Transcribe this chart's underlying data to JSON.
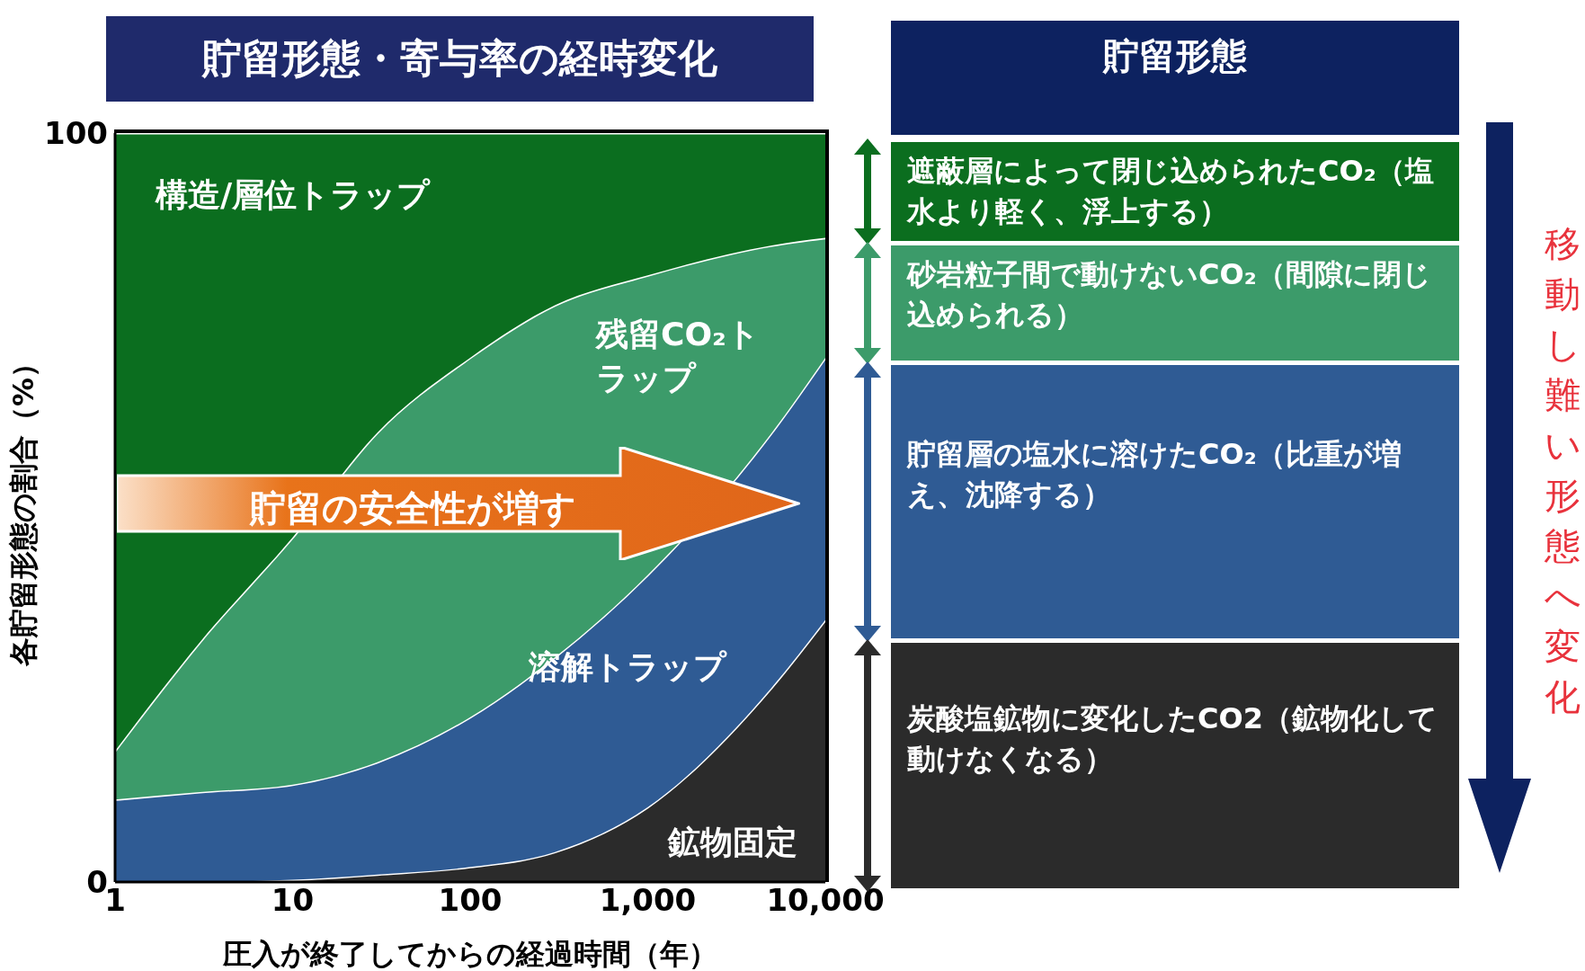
{
  "chart_data": {
    "type": "area",
    "stacked": true,
    "title": "貯留形態・寄与率の経時変化",
    "xlabel": "圧入が終了してからの経過時間（年）",
    "ylabel": "各貯留形態の割合（%）",
    "log": "x",
    "x": [
      1,
      3,
      10,
      30,
      100,
      300,
      1000,
      5000,
      10000
    ],
    "series": [
      {
        "name": "鉱物固定",
        "color": "#2b2b2b",
        "values": [
          0,
          0,
          0.3,
          1,
          2,
          4,
          10,
          26,
          35
        ]
      },
      {
        "name": "溶解トラップ",
        "color": "#2f5b94",
        "values": [
          11,
          12,
          12.7,
          15,
          20,
          26,
          31,
          34,
          35
        ]
      },
      {
        "name": "残留CO₂トラップ",
        "color": "#3c9b6a",
        "values": [
          6.5,
          20,
          33,
          44,
          48,
          47,
          40,
          25,
          16
        ]
      },
      {
        "name": "構造/層位トラップ",
        "color": "#0b6e1f",
        "values": [
          82.5,
          68,
          54,
          40,
          30,
          23,
          19,
          15,
          14
        ]
      }
    ],
    "xlim": [
      1,
      10000
    ],
    "xticks": [
      1,
      10,
      100,
      {
        "value": 1000,
        "label": "1,000"
      },
      {
        "value": 10000,
        "label": "10,000"
      }
    ],
    "ylim": [
      0,
      100
    ],
    "yticks": [
      0,
      100
    ],
    "annotations": [
      "貯留の安全性が増す",
      "貯留形態",
      "遮蔽層によって閉じ込められたCO₂（塩水より軽く、浮上する）",
      "砂岩粒子間で動けないCO₂（間隙に閉じ込められる）",
      "貯留層の塩水に溶けたCO₂（比重が増え、沈降する）",
      "炭酸塩鉱物に変化したCO2（鉱物化して動けなくなる）",
      "移動し難い形態へ変化"
    ]
  }
}
